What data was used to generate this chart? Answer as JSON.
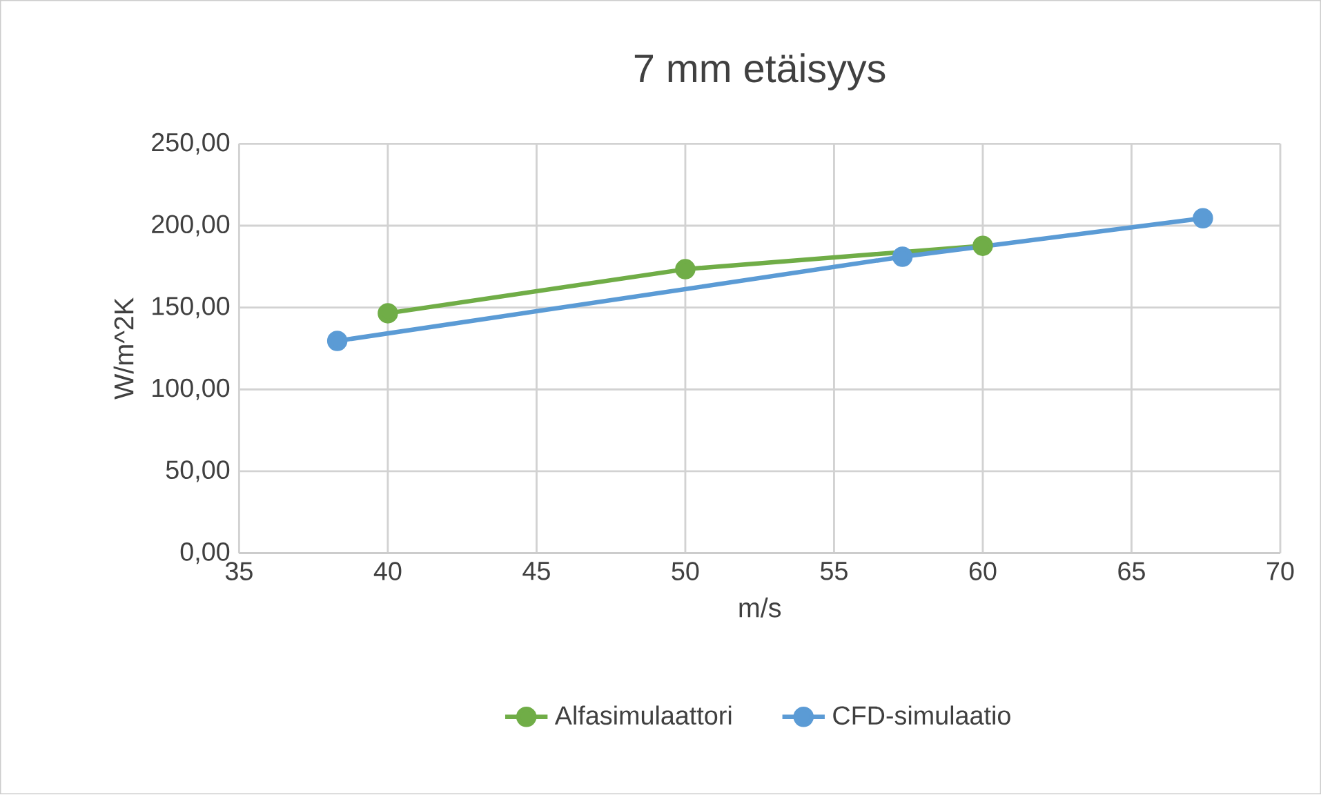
{
  "chart_data": {
    "type": "line",
    "title": "7 mm etäisyys",
    "xlabel": "m/s",
    "ylabel": "W/m^2K",
    "xlim": [
      35,
      70
    ],
    "xticks": [
      35,
      40,
      45,
      50,
      55,
      60,
      65,
      70
    ],
    "ylim": [
      0,
      250
    ],
    "yticks": [
      {
        "value": 0,
        "label": "0,00"
      },
      {
        "value": 50,
        "label": "50,00"
      },
      {
        "value": 100,
        "label": "100,00"
      },
      {
        "value": 150,
        "label": "150,00"
      },
      {
        "value": 200,
        "label": "200,00"
      },
      {
        "value": 250,
        "label": "250,00"
      }
    ],
    "grid": true,
    "legend": "bottom",
    "marker": "circle",
    "line_style": "solid",
    "series": [
      {
        "name": "Alfasimulaattori",
        "color": "#70ad47",
        "x": [
          40,
          50,
          60
        ],
        "values": [
          146.5,
          173.4,
          187.7
        ]
      },
      {
        "name": "CFD-simulaatio",
        "color": "#5b9bd5",
        "x": [
          38.3,
          57.3,
          67.4
        ],
        "values": [
          129.6,
          181,
          204.5
        ]
      }
    ]
  }
}
